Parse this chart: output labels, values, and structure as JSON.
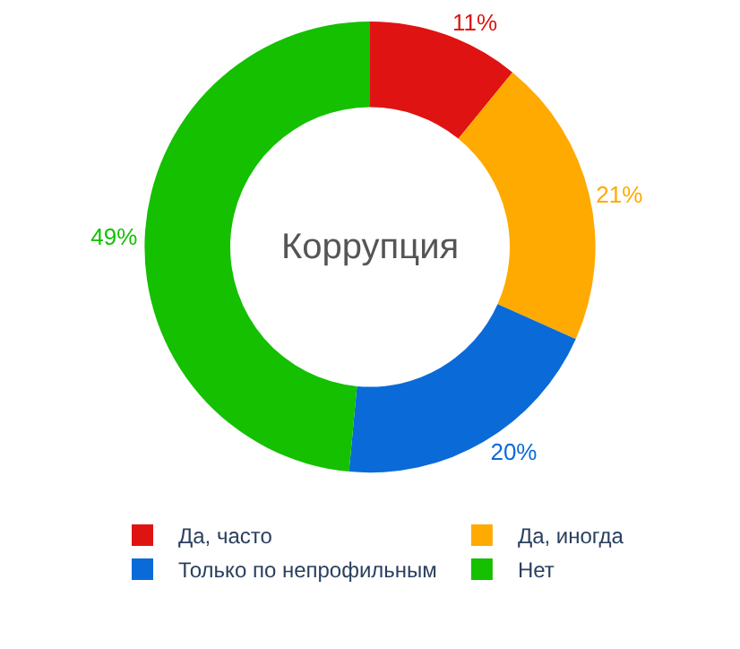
{
  "chart_data": {
    "type": "donut",
    "title": "Коррупция",
    "categories": [
      "Да, часто",
      "Да, иногда",
      "Только по непрофильным",
      "Нет"
    ],
    "values": [
      11,
      21,
      20,
      49
    ],
    "value_labels": [
      "11%",
      "21%",
      "20%",
      "49%"
    ],
    "colors": [
      "#e01313",
      "#ffaa00",
      "#0a6ad8",
      "#14c000"
    ],
    "legend": "bottom"
  }
}
